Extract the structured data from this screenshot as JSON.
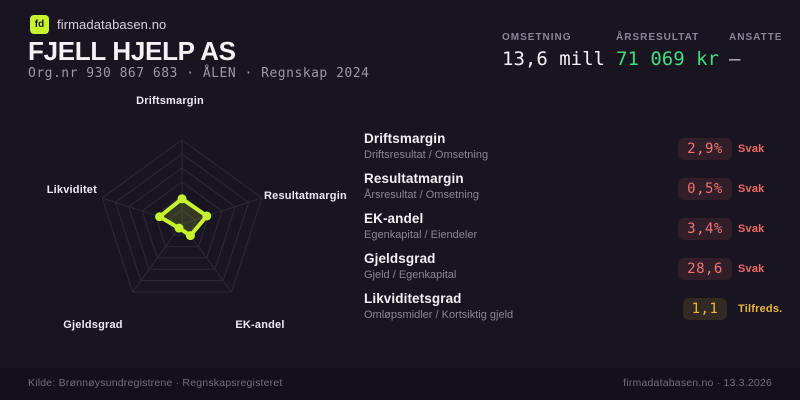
{
  "brand": {
    "logo_text": "fd",
    "site_name": "firmadatabasen.no"
  },
  "header": {
    "title": "FJELL HJELP AS",
    "subtitle": "Org.nr 930 867 683  ·  ÅLEN  ·  Regnskap 2024",
    "stats": [
      {
        "label": "OMSETNING",
        "value": "13,6 mill"
      },
      {
        "label": "ÅRSRESULTAT",
        "value": "71 069 kr"
      },
      {
        "label": "ANSATTE",
        "value": "–"
      }
    ]
  },
  "chart_data": {
    "type": "radar",
    "axes": [
      "Driftsmargin",
      "Resultatmargin",
      "EK-andel",
      "Gjeldsgrad",
      "Likviditet"
    ],
    "normalized_values": [
      0.3,
      0.31,
      0.17,
      0.06,
      0.28
    ],
    "ring_count": 6,
    "accent_color": "#c6f22e",
    "fill_color": "rgba(198,242,46,0.16)",
    "grid_color": "#2c2836",
    "legend": "none",
    "value_range": [
      0,
      1
    ]
  },
  "metrics": [
    {
      "name": "Driftsmargin",
      "formula": "Driftsresultat / Omsetning",
      "value": "2,9%",
      "status": "Svak"
    },
    {
      "name": "Resultatmargin",
      "formula": "Årsresultat / Omsetning",
      "value": "0,5%",
      "status": "Svak"
    },
    {
      "name": "EK-andel",
      "formula": "Egenkapital / Eiendeler",
      "value": "3,4%",
      "status": "Svak"
    },
    {
      "name": "Gjeldsgrad",
      "formula": "Gjeld / Egenkapital",
      "value": "28,6",
      "status": "Svak"
    },
    {
      "name": "Likviditetsgrad",
      "formula": "Omløpsmidler / Kortsiktig gjeld",
      "value": "1,1",
      "status": "Tilfreds."
    }
  ],
  "footer": {
    "left": "Kilde: Brønnøysundregistrene · Regnskapsregisteret",
    "right": "firmadatabasen.no · 13.3.2026"
  }
}
